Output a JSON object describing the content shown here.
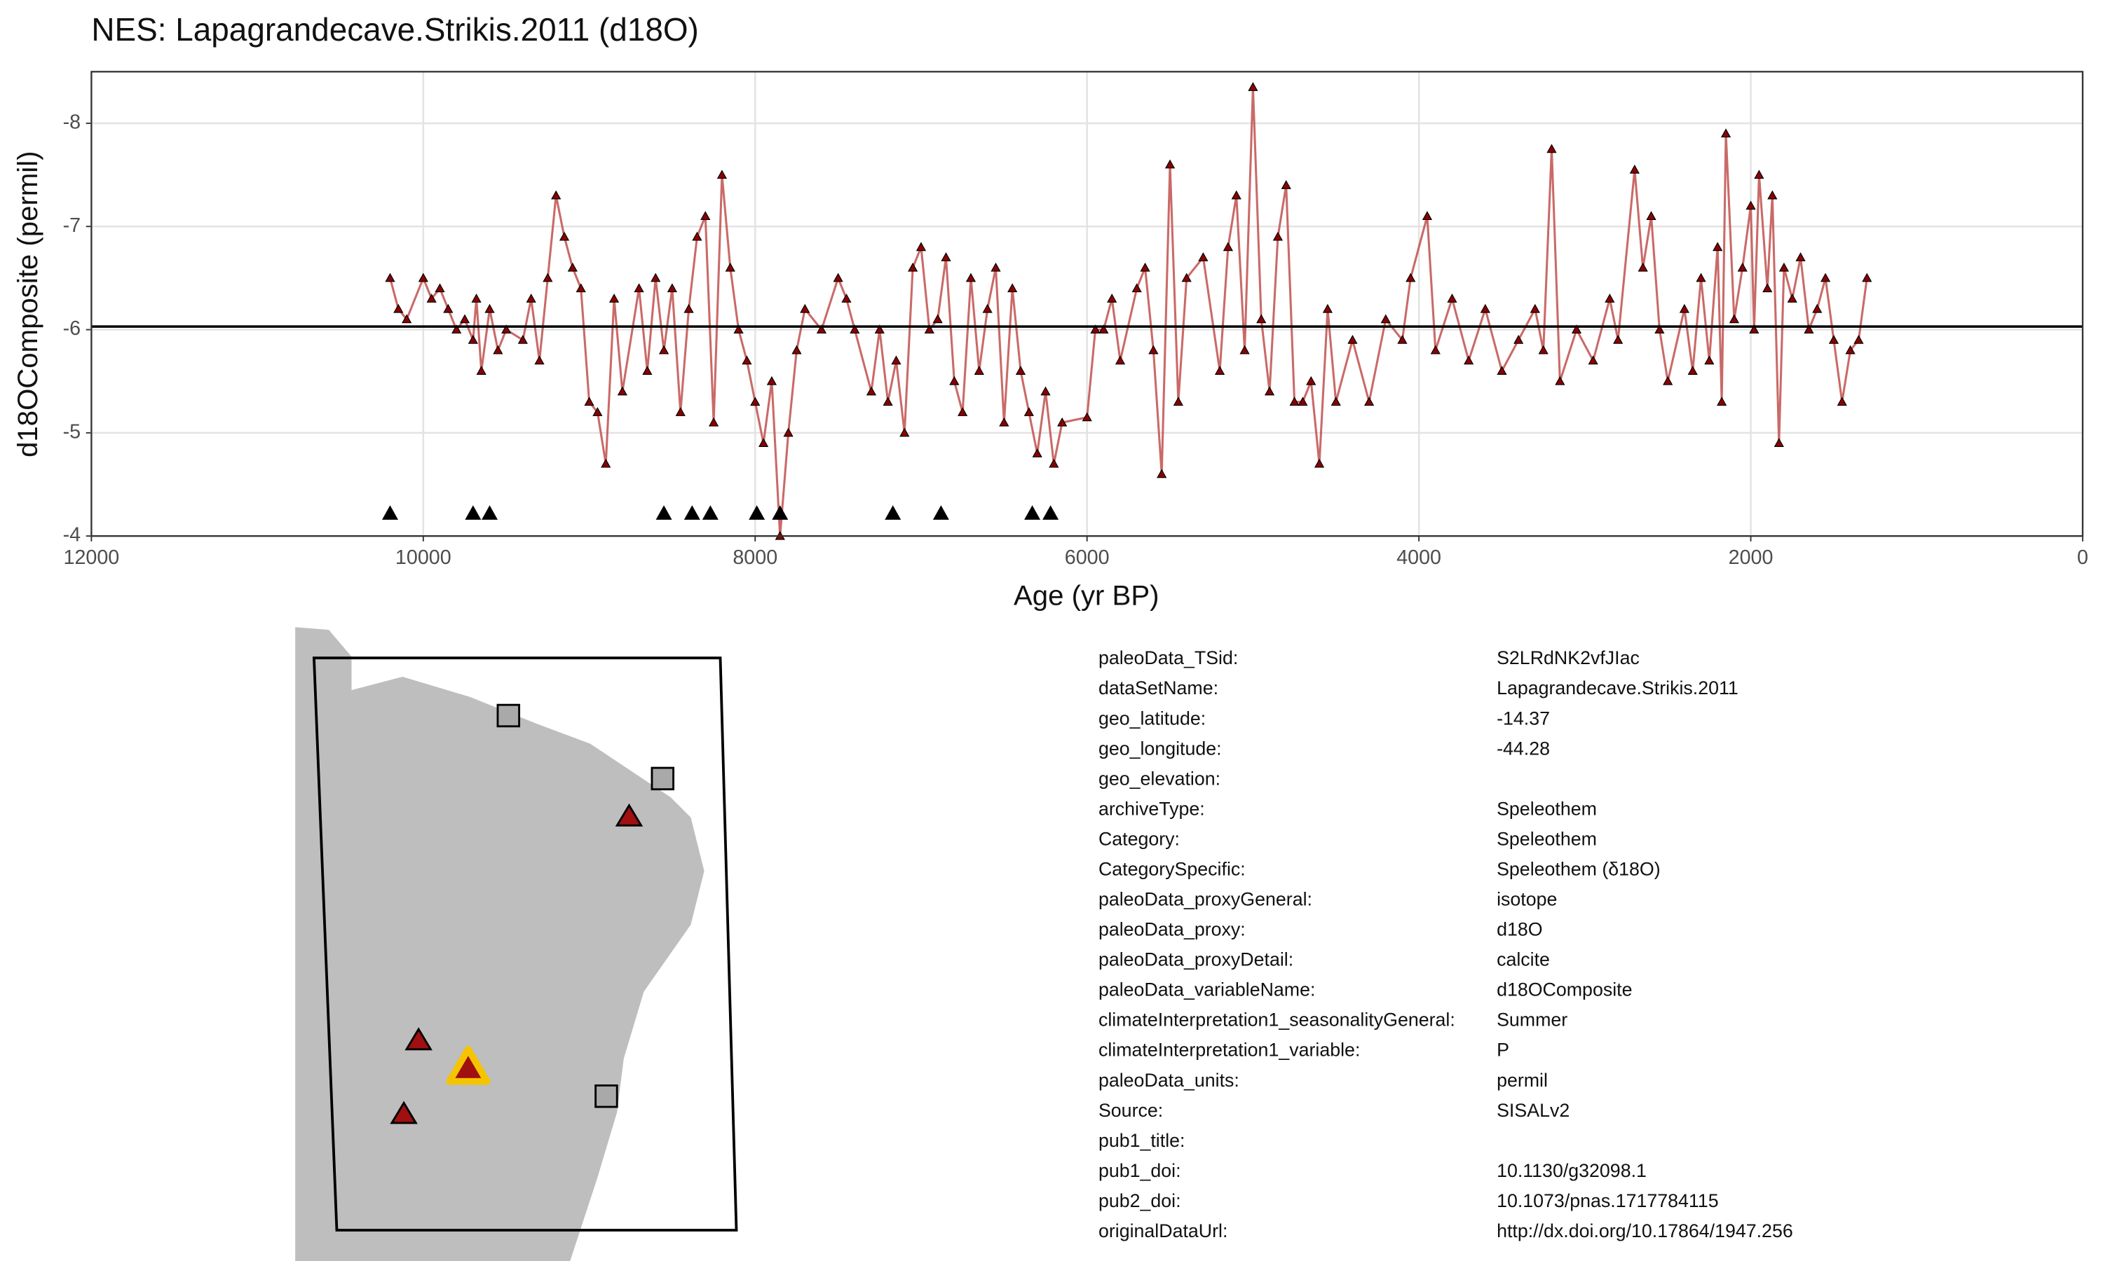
{
  "chart_data": {
    "type": "line",
    "title": "NES: Lapagrandecave.Strikis.2011 (d18O)",
    "x_label": "Age (yr BP)",
    "y_label": "d18OComposite (permil)",
    "xlim": [
      12000,
      0
    ],
    "xticks": [
      12000,
      10000,
      8000,
      6000,
      4000,
      2000,
      0
    ],
    "ylim": [
      -4,
      -8.5
    ],
    "yticks": [
      -8,
      -7,
      -6,
      -5,
      -4
    ],
    "grid": true,
    "hline": -6.03,
    "series": [
      {
        "color": "#8b0000",
        "line_color": "#c0504d",
        "x": [
          10200,
          10150,
          10100,
          10000,
          9950,
          9900,
          9850,
          9800,
          9750,
          9700,
          9680,
          9650,
          9600,
          9550,
          9500,
          9400,
          9350,
          9300,
          9250,
          9200,
          9150,
          9100,
          9050,
          9000,
          8950,
          8900,
          8850,
          8800,
          8700,
          8650,
          8600,
          8550,
          8500,
          8450,
          8400,
          8350,
          8300,
          8250,
          8200,
          8150,
          8100,
          8050,
          8000,
          7950,
          7900,
          7850,
          7800,
          7750,
          7700,
          7600,
          7500,
          7450,
          7400,
          7300,
          7250,
          7200,
          7150,
          7100,
          7050,
          7000,
          6950,
          6900,
          6850,
          6800,
          6750,
          6700,
          6650,
          6600,
          6550,
          6500,
          6450,
          6400,
          6350,
          6300,
          6250,
          6200,
          6150,
          6000,
          5950,
          5900,
          5850,
          5800,
          5700,
          5650,
          5600,
          5550,
          5500,
          5450,
          5400,
          5300,
          5200,
          5150,
          5100,
          5050,
          5000,
          4950,
          4900,
          4850,
          4800,
          4750,
          4700,
          4650,
          4600,
          4550,
          4500,
          4400,
          4300,
          4200,
          4100,
          4050,
          3950,
          3900,
          3800,
          3700,
          3600,
          3500,
          3400,
          3300,
          3250,
          3200,
          3150,
          3050,
          2950,
          2850,
          2800,
          2700,
          2650,
          2600,
          2550,
          2500,
          2400,
          2350,
          2300,
          2250,
          2200,
          2175,
          2150,
          2100,
          2050,
          2000,
          1980,
          1950,
          1900,
          1870,
          1830,
          1800,
          1750,
          1700,
          1650,
          1600,
          1550,
          1500,
          1450,
          1400,
          1350,
          1300
        ],
        "values": [
          -6.5,
          -6.2,
          -6.1,
          -6.5,
          -6.3,
          -6.4,
          -6.2,
          -6.0,
          -6.1,
          -5.9,
          -6.3,
          -5.6,
          -6.2,
          -5.8,
          -6.0,
          -5.9,
          -6.3,
          -5.7,
          -6.5,
          -7.3,
          -6.9,
          -6.6,
          -6.4,
          -5.3,
          -5.2,
          -4.7,
          -6.3,
          -5.4,
          -6.4,
          -5.6,
          -6.5,
          -5.8,
          -6.4,
          -5.2,
          -6.2,
          -6.9,
          -7.1,
          -5.1,
          -7.5,
          -6.6,
          -6.0,
          -5.7,
          -5.3,
          -4.9,
          -5.5,
          -4.0,
          -5.0,
          -5.8,
          -6.2,
          -6.0,
          -6.5,
          -6.3,
          -6.0,
          -5.4,
          -6.0,
          -5.3,
          -5.7,
          -5.0,
          -6.6,
          -6.8,
          -6.0,
          -6.1,
          -6.7,
          -5.5,
          -5.2,
          -6.5,
          -5.6,
          -6.2,
          -6.6,
          -5.1,
          -6.4,
          -5.6,
          -5.2,
          -4.8,
          -5.4,
          -4.7,
          -5.1,
          -5.15,
          -6.0,
          -6.0,
          -6.3,
          -5.7,
          -6.4,
          -6.6,
          -5.8,
          -4.6,
          -7.6,
          -5.3,
          -6.5,
          -6.7,
          -5.6,
          -6.8,
          -7.3,
          -5.8,
          -8.35,
          -6.1,
          -5.4,
          -6.9,
          -7.4,
          -5.3,
          -5.3,
          -5.5,
          -4.7,
          -6.2,
          -5.3,
          -5.9,
          -5.3,
          -6.1,
          -5.9,
          -6.5,
          -7.1,
          -5.8,
          -6.3,
          -5.7,
          -6.2,
          -5.6,
          -5.9,
          -6.2,
          -5.8,
          -7.75,
          -5.5,
          -6.0,
          -5.7,
          -6.3,
          -5.9,
          -7.55,
          -6.6,
          -7.1,
          -6.0,
          -5.5,
          -6.2,
          -5.6,
          -6.5,
          -5.7,
          -6.8,
          -5.3,
          -7.9,
          -6.1,
          -6.6,
          -7.2,
          -6.0,
          -7.5,
          -6.4,
          -7.3,
          -4.9,
          -6.6,
          -6.3,
          -6.7,
          -6.0,
          -6.2,
          -6.5,
          -5.9,
          -5.3,
          -5.8,
          -5.9,
          -6.5
        ]
      }
    ],
    "age_markers": {
      "color": "#000000",
      "y": -4.22,
      "x": [
        10200,
        9700,
        9600,
        8550,
        8380,
        8270,
        7990,
        7850,
        7170,
        6880,
        6330,
        6220
      ]
    }
  },
  "metadata": {
    "rows": [
      [
        "paleoData_TSid:",
        "S2LRdNK2vfJIac"
      ],
      [
        "dataSetName:",
        "Lapagrandecave.Strikis.2011"
      ],
      [
        "geo_latitude:",
        "-14.37"
      ],
      [
        "geo_longitude:",
        "-44.28"
      ],
      [
        "geo_elevation:"
      ],
      [
        "archiveType:",
        "Speleothem"
      ],
      [
        "Category:",
        "Speleothem"
      ],
      [
        "CategorySpecific:",
        "Speleothem (δ18O)"
      ],
      [
        "paleoData_proxyGeneral:",
        "isotope"
      ],
      [
        "paleoData_proxy:",
        "d18O"
      ],
      [
        "paleoData_proxyDetail:",
        "calcite"
      ],
      [
        "paleoData_variableName:",
        "d18OComposite"
      ],
      [
        "climateInterpretation1_seasonalityGeneral:",
        "Summer"
      ],
      [
        "climateInterpretation1_variable:",
        "P"
      ],
      [
        "paleoData_units:",
        "permil"
      ],
      [
        "Source:",
        "SISALv2"
      ],
      [
        "pub1_title:"
      ],
      [
        "pub1_doi:",
        "10.1130/g32098.1"
      ],
      [
        "pub2_doi:",
        "10.1073/pnas.1717784115"
      ],
      [
        "originalDataUrl:",
        "http://dx.doi.org/10.17864/1947.256"
      ]
    ]
  }
}
